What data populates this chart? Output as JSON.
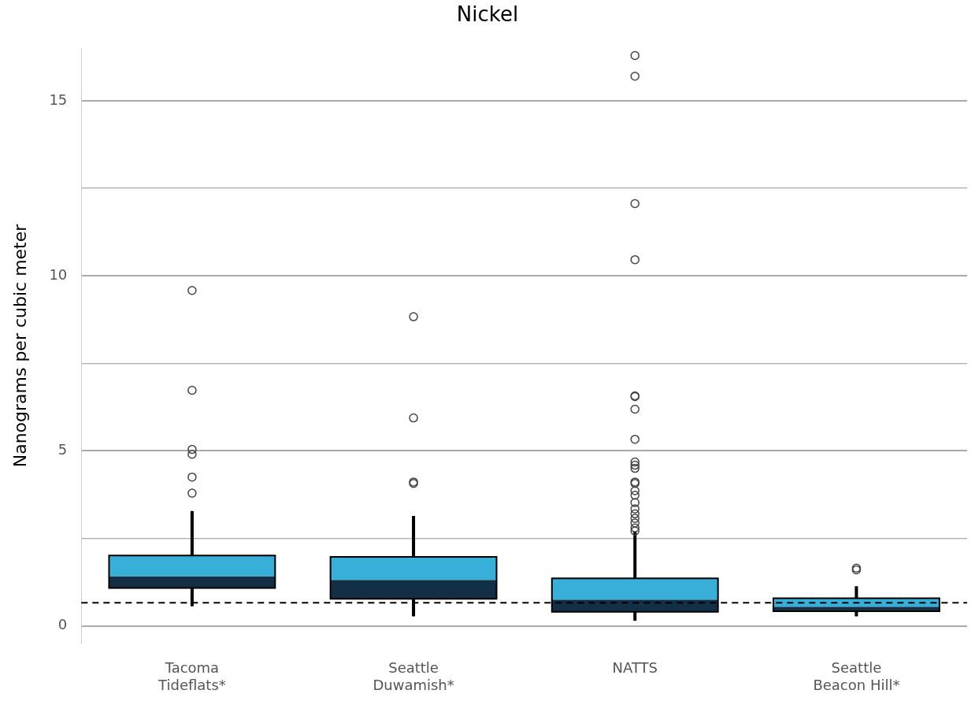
{
  "chart_data": {
    "type": "box",
    "title": "Nickel",
    "ylabel": "Nanograms per cubic meter",
    "categories": [
      "Tacoma Tideflats*",
      "Seattle Duwamish*",
      "NATTS",
      "Seattle Beacon Hill*"
    ],
    "ylim": [
      -0.5,
      16.5
    ],
    "yticks": [
      0,
      {
        "value": 2.5,
        "label": null
      },
      5,
      {
        "value": 7.5,
        "label": null
      },
      10,
      {
        "value": 12.5,
        "label": null
      },
      15
    ],
    "grid": "y",
    "legend": false,
    "series": [
      {
        "color": "#38afd9",
        "colors": [
          "#122f45",
          "#122f45",
          "#122f45",
          "#122f45"
        ],
        "boxes": [
          {
            "low": 0.56,
            "q1": 1.08,
            "median": 1.42,
            "q3": 2.01,
            "high": 3.28,
            "outliers": [
              9.58,
              6.73,
              5.04,
              4.9,
              4.25,
              3.79
            ]
          },
          {
            "low": 0.27,
            "q1": 0.77,
            "median": 1.31,
            "q3": 1.97,
            "high": 3.14,
            "outliers": [
              8.83,
              5.94,
              4.11,
              4.07
            ]
          },
          {
            "low": 0.15,
            "q1": 0.4,
            "median": 0.75,
            "q3": 1.36,
            "high": 2.7,
            "outliers": [
              16.29,
              15.7,
              12.06,
              10.46,
              6.57,
              6.55,
              6.19,
              5.33,
              4.68,
              4.59,
              4.5,
              4.11,
              4.07,
              3.86,
              3.73,
              3.52,
              3.34,
              3.2,
              3.07,
              2.94,
              2.8,
              2.71
            ]
          },
          {
            "low": 0.27,
            "q1": 0.42,
            "median": 0.55,
            "q3": 0.79,
            "high": 1.13,
            "outliers": [
              1.65,
              1.6
            ]
          }
        ]
      }
    ],
    "ref_lines": [
      {
        "axis": "y",
        "value": 0.66,
        "color": "#000000",
        "line_style": "dashed"
      }
    ]
  }
}
